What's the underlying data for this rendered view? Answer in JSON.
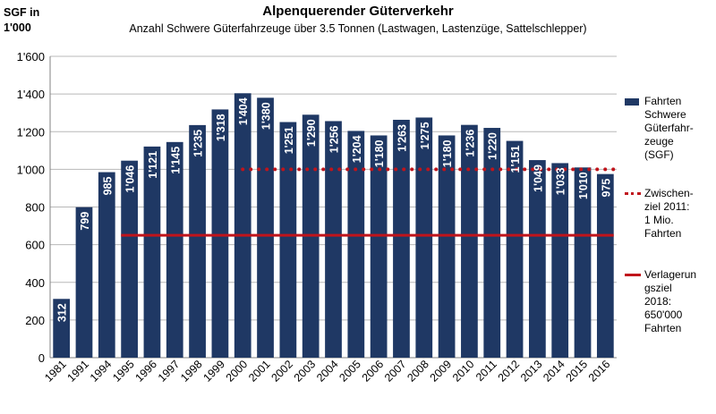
{
  "chart_data": {
    "type": "bar",
    "title": "Alpenquerender Güterverkehr",
    "subtitle": "Anzahl Schwere Güterfahrzeuge über 3.5 Tonnen (Lastwagen, Lastenzüge, Sattelschlepper)",
    "ylabel_line1": "SGF in",
    "ylabel_line2": "1'000",
    "ylim": [
      0,
      1600
    ],
    "yticks": [
      0,
      200,
      400,
      600,
      800,
      1000,
      1200,
      1400,
      1600
    ],
    "ytick_labels": [
      "0",
      "200",
      "400",
      "600",
      "800",
      "1'000",
      "1'200",
      "1'400",
      "1'600"
    ],
    "grid": true,
    "legend_position": "right",
    "categories": [
      "1981",
      "1991",
      "1994",
      "1995",
      "1996",
      "1997",
      "1998",
      "1999",
      "2000",
      "2001",
      "2002",
      "2003",
      "2004",
      "2005",
      "2006",
      "2007",
      "2008",
      "2009",
      "2010",
      "2011",
      "2012",
      "2013",
      "2014",
      "2015",
      "2016"
    ],
    "series": [
      {
        "name": "Fahrten Schwere Güterfahr-zeuge (SGF)",
        "color": "#1f3864",
        "values": [
          312,
          799,
          985,
          1046,
          1121,
          1145,
          1235,
          1318,
          1404,
          1380,
          1251,
          1290,
          1256,
          1204,
          1180,
          1263,
          1275,
          1180,
          1236,
          1220,
          1151,
          1049,
          1033,
          1010,
          975
        ],
        "labels": [
          "312",
          "799",
          "985",
          "1'046",
          "1'121",
          "1'145",
          "1'235",
          "1'318",
          "1'404",
          "1'380",
          "1'251",
          "1'290",
          "1'256",
          "1'204",
          "1'180",
          "1'263",
          "1'275",
          "1'180",
          "1'236",
          "1'220",
          "1'151",
          "1'049",
          "1'033",
          "1'010",
          "975"
        ]
      }
    ],
    "reference_lines": [
      {
        "name": "Zwischen-ziel 2011: 1 Mio. Fahrten",
        "value": 1000,
        "style": "dotted",
        "color": "#c0141b",
        "from": "2000",
        "to": "2016"
      },
      {
        "name": "Verlagerun gsziel 2018: 650'000 Fahrten",
        "value": 650,
        "style": "solid",
        "color": "#c0141b",
        "from": "1995",
        "to": "2016"
      }
    ]
  },
  "legend": {
    "bars": [
      "Fahrten",
      "Schwere",
      "Güterfahr-",
      "zeuge",
      "(SGF)"
    ],
    "dotted": [
      "Zwischen-",
      "ziel 2011:",
      "1 Mio.",
      "Fahrten"
    ],
    "solid": [
      "Verlagerun",
      "gsziel",
      "2018:",
      "650'000",
      "Fahrten"
    ]
  }
}
